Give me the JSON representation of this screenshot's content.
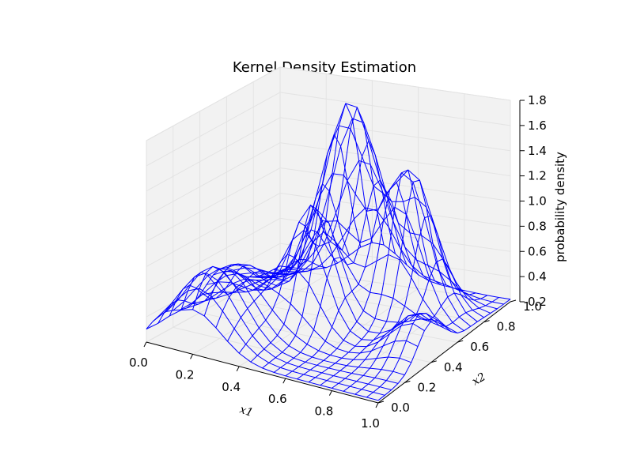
{
  "chart_data": {
    "type": "surface-wireframe",
    "title": "Kernel Density Estimation",
    "xlabel": "x1",
    "ylabel": "x2",
    "zlabel": "probability density",
    "xlim": [
      0.0,
      1.0
    ],
    "ylim": [
      0.0,
      1.0
    ],
    "zlim": [
      0.2,
      1.8
    ],
    "xticks": [
      "0.0",
      "0.2",
      "0.4",
      "0.6",
      "0.8",
      "1.0"
    ],
    "yticks": [
      "0.0",
      "0.2",
      "0.4",
      "0.6",
      "0.8",
      "1.0"
    ],
    "zticks": [
      "0.2",
      "0.4",
      "0.6",
      "0.8",
      "1.0",
      "1.2",
      "1.4",
      "1.6",
      "1.8"
    ],
    "grid": true,
    "wire_color": "#0000ff",
    "grid_resolution": 20,
    "estimated_peaks": [
      {
        "x1": 0.42,
        "x2": 0.8,
        "density": 1.8
      },
      {
        "x1": 0.72,
        "x2": 0.72,
        "density": 1.45
      },
      {
        "x1": 0.45,
        "x2": 0.45,
        "density": 1.3
      },
      {
        "x1": 0.2,
        "x2": 0.1,
        "density": 0.8
      }
    ],
    "estimated_minimum": {
      "x1": 0.75,
      "x2": 0.4,
      "density": 0.25
    }
  }
}
